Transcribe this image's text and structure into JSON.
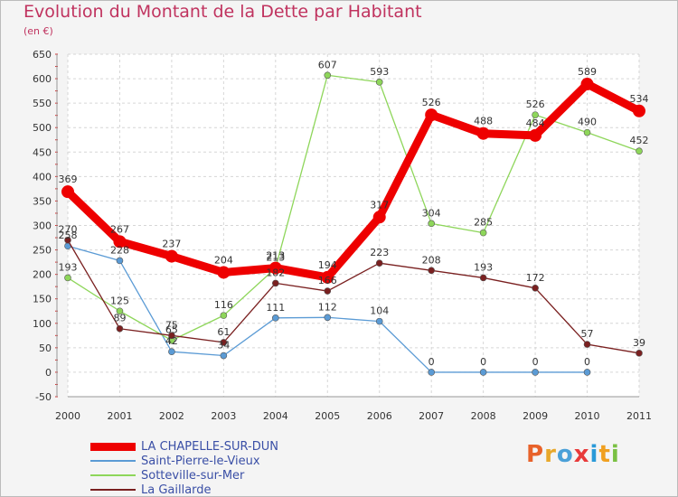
{
  "header": {
    "title": "Evolution du Montant de la Dette par Habitant",
    "unit": "(en €)"
  },
  "brand": {
    "letters": [
      "P",
      "r",
      "o",
      "x",
      "i",
      "t",
      "i"
    ],
    "colors": [
      "#e8622a",
      "#e8a82a",
      "#4aa0d8",
      "#e83a3a",
      "#2a9ad8",
      "#f0a020",
      "#7ac043"
    ]
  },
  "chart_data": {
    "type": "line",
    "title": "Evolution du Montant de la Dette par Habitant",
    "ylabel": "(en €)",
    "x": [
      "2000",
      "2001",
      "2002",
      "2003",
      "2004",
      "2005",
      "2006",
      "2007",
      "2008",
      "2009",
      "2010",
      "2011"
    ],
    "ylim": [
      -50,
      650
    ],
    "yticks": [
      -50,
      0,
      50,
      100,
      150,
      200,
      250,
      300,
      350,
      400,
      450,
      500,
      550,
      600,
      650
    ],
    "grid": true,
    "legend_position": "bottom-left",
    "series": [
      {
        "name": "LA CHAPELLE-SUR-DUN",
        "color": "#ee0000",
        "values": [
          369,
          267,
          237,
          204,
          213,
          194,
          317,
          526,
          488,
          484,
          589,
          534
        ],
        "labels": [
          "369",
          "267",
          "237",
          "204",
          "213",
          "194",
          "317",
          "526",
          "488",
          "484",
          "589",
          "534"
        ]
      },
      {
        "name": "Saint-Pierre-le-Vieux",
        "color": "#5b9bd5",
        "values": [
          258,
          228,
          42,
          34,
          111,
          112,
          104,
          0,
          0,
          0,
          0,
          null
        ],
        "labels": [
          "258",
          "228",
          "42",
          "34",
          "111",
          "112",
          "104",
          "0",
          "0",
          "0",
          "0",
          null
        ]
      },
      {
        "name": "Sotteville-sur-Mer",
        "color": "#8ed65a",
        "values": [
          193,
          125,
          65,
          116,
          213,
          607,
          593,
          304,
          285,
          526,
          490,
          452
        ],
        "labels": [
          "193",
          "125",
          "65",
          "116",
          "213",
          "607",
          "593",
          "304",
          "285",
          "526",
          "490",
          "452"
        ]
      },
      {
        "name": "La Gaillarde",
        "color": "#7a2020",
        "values": [
          270,
          89,
          75,
          61,
          182,
          166,
          223,
          208,
          193,
          172,
          57,
          39
        ],
        "labels": [
          "270",
          "89",
          "75",
          "61",
          "182",
          "166",
          "223",
          "208",
          "193",
          "172",
          "57",
          "39"
        ]
      }
    ]
  }
}
